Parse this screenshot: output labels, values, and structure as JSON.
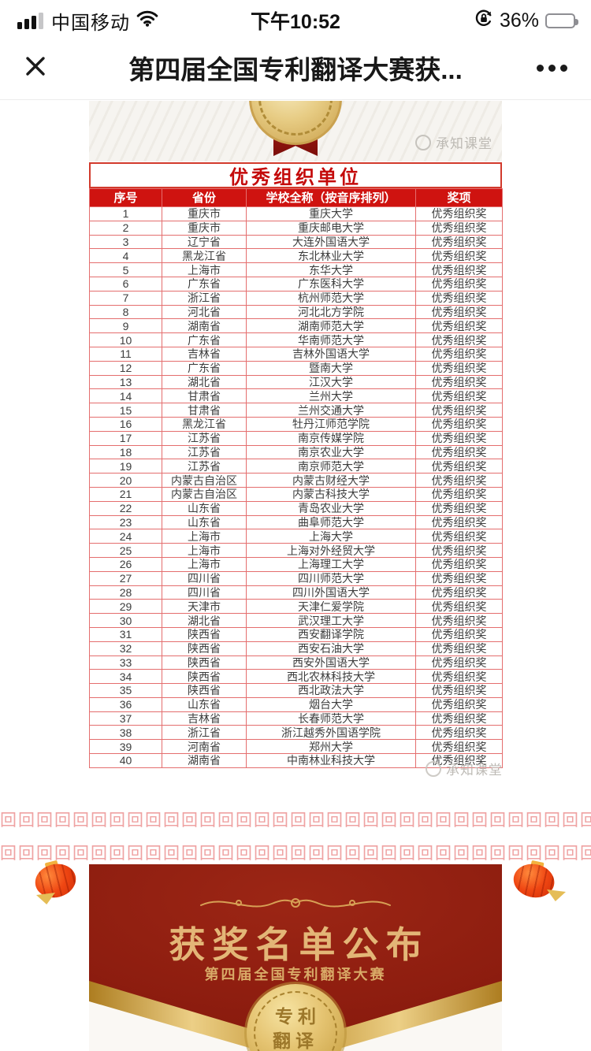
{
  "status_bar": {
    "carrier": "中国移动",
    "time": "下午10:52",
    "battery_percent": "36%",
    "battery_level": 36
  },
  "nav": {
    "title": "第四届全国专利翻译大赛获..."
  },
  "watermark": {
    "brand": "承知课堂"
  },
  "section": {
    "title": "优秀组织单位",
    "columns": [
      "序号",
      "省份",
      "学校全称（按音序排列）",
      "奖项"
    ],
    "rows": [
      [
        "1",
        "重庆市",
        "重庆大学",
        "优秀组织奖"
      ],
      [
        "2",
        "重庆市",
        "重庆邮电大学",
        "优秀组织奖"
      ],
      [
        "3",
        "辽宁省",
        "大连外国语大学",
        "优秀组织奖"
      ],
      [
        "4",
        "黑龙江省",
        "东北林业大学",
        "优秀组织奖"
      ],
      [
        "5",
        "上海市",
        "东华大学",
        "优秀组织奖"
      ],
      [
        "6",
        "广东省",
        "广东医科大学",
        "优秀组织奖"
      ],
      [
        "7",
        "浙江省",
        "杭州师范大学",
        "优秀组织奖"
      ],
      [
        "8",
        "河北省",
        "河北北方学院",
        "优秀组织奖"
      ],
      [
        "9",
        "湖南省",
        "湖南师范大学",
        "优秀组织奖"
      ],
      [
        "10",
        "广东省",
        "华南师范大学",
        "优秀组织奖"
      ],
      [
        "11",
        "吉林省",
        "吉林外国语大学",
        "优秀组织奖"
      ],
      [
        "12",
        "广东省",
        "暨南大学",
        "优秀组织奖"
      ],
      [
        "13",
        "湖北省",
        "江汉大学",
        "优秀组织奖"
      ],
      [
        "14",
        "甘肃省",
        "兰州大学",
        "优秀组织奖"
      ],
      [
        "15",
        "甘肃省",
        "兰州交通大学",
        "优秀组织奖"
      ],
      [
        "16",
        "黑龙江省",
        "牡丹江师范学院",
        "优秀组织奖"
      ],
      [
        "17",
        "江苏省",
        "南京传媒学院",
        "优秀组织奖"
      ],
      [
        "18",
        "江苏省",
        "南京农业大学",
        "优秀组织奖"
      ],
      [
        "19",
        "江苏省",
        "南京师范大学",
        "优秀组织奖"
      ],
      [
        "20",
        "内蒙古自治区",
        "内蒙古财经大学",
        "优秀组织奖"
      ],
      [
        "21",
        "内蒙古自治区",
        "内蒙古科技大学",
        "优秀组织奖"
      ],
      [
        "22",
        "山东省",
        "青岛农业大学",
        "优秀组织奖"
      ],
      [
        "23",
        "山东省",
        "曲阜师范大学",
        "优秀组织奖"
      ],
      [
        "24",
        "上海市",
        "上海大学",
        "优秀组织奖"
      ],
      [
        "25",
        "上海市",
        "上海对外经贸大学",
        "优秀组织奖"
      ],
      [
        "26",
        "上海市",
        "上海理工大学",
        "优秀组织奖"
      ],
      [
        "27",
        "四川省",
        "四川师范大学",
        "优秀组织奖"
      ],
      [
        "28",
        "四川省",
        "四川外国语大学",
        "优秀组织奖"
      ],
      [
        "29",
        "天津市",
        "天津仁爱学院",
        "优秀组织奖"
      ],
      [
        "30",
        "湖北省",
        "武汉理工大学",
        "优秀组织奖"
      ],
      [
        "31",
        "陕西省",
        "西安翻译学院",
        "优秀组织奖"
      ],
      [
        "32",
        "陕西省",
        "西安石油大学",
        "优秀组织奖"
      ],
      [
        "33",
        "陕西省",
        "西安外国语大学",
        "优秀组织奖"
      ],
      [
        "34",
        "陕西省",
        "西北农林科技大学",
        "优秀组织奖"
      ],
      [
        "35",
        "陕西省",
        "西北政法大学",
        "优秀组织奖"
      ],
      [
        "36",
        "山东省",
        "烟台大学",
        "优秀组织奖"
      ],
      [
        "37",
        "吉林省",
        "长春师范大学",
        "优秀组织奖"
      ],
      [
        "38",
        "浙江省",
        "浙江越秀外国语学院",
        "优秀组织奖"
      ],
      [
        "39",
        "河南省",
        "郑州大学",
        "优秀组织奖"
      ],
      [
        "40",
        "湖南省",
        "中南林业科技大学",
        "优秀组织奖"
      ]
    ]
  },
  "decor": {
    "meander_glyph": "回",
    "meander_repeat": 42
  },
  "banner": {
    "title": "获奖名单公布",
    "subtitle": "第四届全国专利翻译大赛",
    "seal_line1": "专利",
    "seal_line2": "翻译"
  },
  "colors": {
    "header_red": "#cf1310",
    "border_red": "#e46e6e",
    "title_red": "#c40a0a",
    "card_red": "#8a1b0e",
    "gold_text": "#e3b677",
    "meander_pink": "#efa2a2",
    "lantern_orange": "#ef4612"
  }
}
